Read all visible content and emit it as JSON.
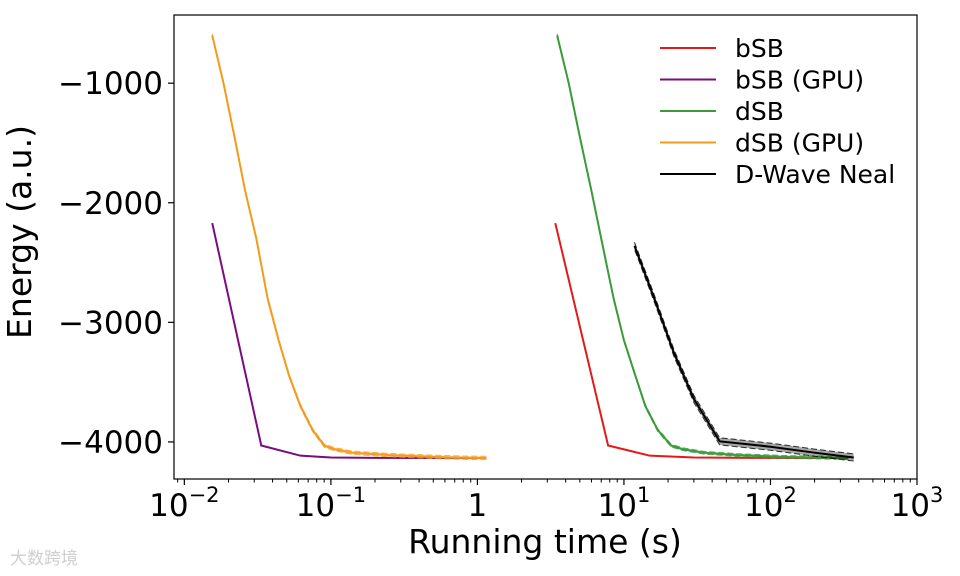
{
  "chart_data": {
    "type": "line",
    "title": "",
    "xlabel": "Running time (s)",
    "ylabel": "Energy (a.u.)",
    "xscale": "log",
    "xlim": [
      0.0085,
      1000
    ],
    "ylim": [
      -4310,
      -430
    ],
    "grid": false,
    "legend_position": "top-right",
    "xticks": [
      {
        "value": 0.01,
        "base": "10",
        "exp": "−2"
      },
      {
        "value": 0.1,
        "base": "10",
        "exp": "−1"
      },
      {
        "value": 1,
        "base": "1",
        "exp": ""
      },
      {
        "value": 10,
        "base": "10",
        "exp": "1"
      },
      {
        "value": 100,
        "base": "10",
        "exp": "2"
      },
      {
        "value": 1000,
        "base": "10",
        "exp": "3"
      }
    ],
    "yticks": [
      {
        "value": -1000,
        "label": "−1000"
      },
      {
        "value": -2000,
        "label": "−2000"
      },
      {
        "value": -3000,
        "label": "−3000"
      },
      {
        "value": -4000,
        "label": "−4000"
      }
    ],
    "series": [
      {
        "name": "bSB",
        "color": "#e31a1c",
        "band": 0,
        "x": [
          3.4,
          7.8,
          15,
          30,
          70,
          150,
          320
        ],
        "y": [
          -2170,
          -4030,
          -4115,
          -4130,
          -4133,
          -4134,
          -4134
        ]
      },
      {
        "name": "bSB (GPU)",
        "color": "#7b0c7e",
        "band": 0,
        "x": [
          0.0155,
          0.0335,
          0.062,
          0.1,
          0.2,
          0.5,
          1.15
        ],
        "y": [
          -2170,
          -4030,
          -4115,
          -4130,
          -4133,
          -4134,
          -4134
        ]
      },
      {
        "name": "dSB",
        "color": "#3a9b3a",
        "band": 12,
        "x": [
          3.5,
          4.2,
          5,
          6,
          7,
          8.5,
          10,
          12,
          14,
          17,
          21,
          25,
          35,
          60,
          120,
          250,
          340
        ],
        "y": [
          -600,
          -1000,
          -1450,
          -1900,
          -2300,
          -2800,
          -3150,
          -3450,
          -3700,
          -3900,
          -4030,
          -4060,
          -4090,
          -4110,
          -4125,
          -4132,
          -4134
        ]
      },
      {
        "name": "dSB (GPU)",
        "color": "#f59b1b",
        "band": 14,
        "x": [
          0.0155,
          0.0185,
          0.022,
          0.026,
          0.031,
          0.037,
          0.044,
          0.052,
          0.062,
          0.075,
          0.09,
          0.105,
          0.14,
          0.25,
          0.5,
          0.8,
          1.15
        ],
        "y": [
          -600,
          -1000,
          -1450,
          -1900,
          -2300,
          -2800,
          -3150,
          -3450,
          -3700,
          -3900,
          -4030,
          -4060,
          -4090,
          -4110,
          -4125,
          -4132,
          -4134
        ]
      },
      {
        "name": "D-Wave Neal",
        "color": "#000000",
        "band": 30,
        "x": [
          11.8,
          16,
          22,
          30,
          45,
          100,
          200,
          370
        ],
        "y": [
          -2360,
          -2790,
          -3260,
          -3640,
          -3995,
          -4040,
          -4090,
          -4130
        ]
      }
    ]
  },
  "watermark": "大数跨境"
}
